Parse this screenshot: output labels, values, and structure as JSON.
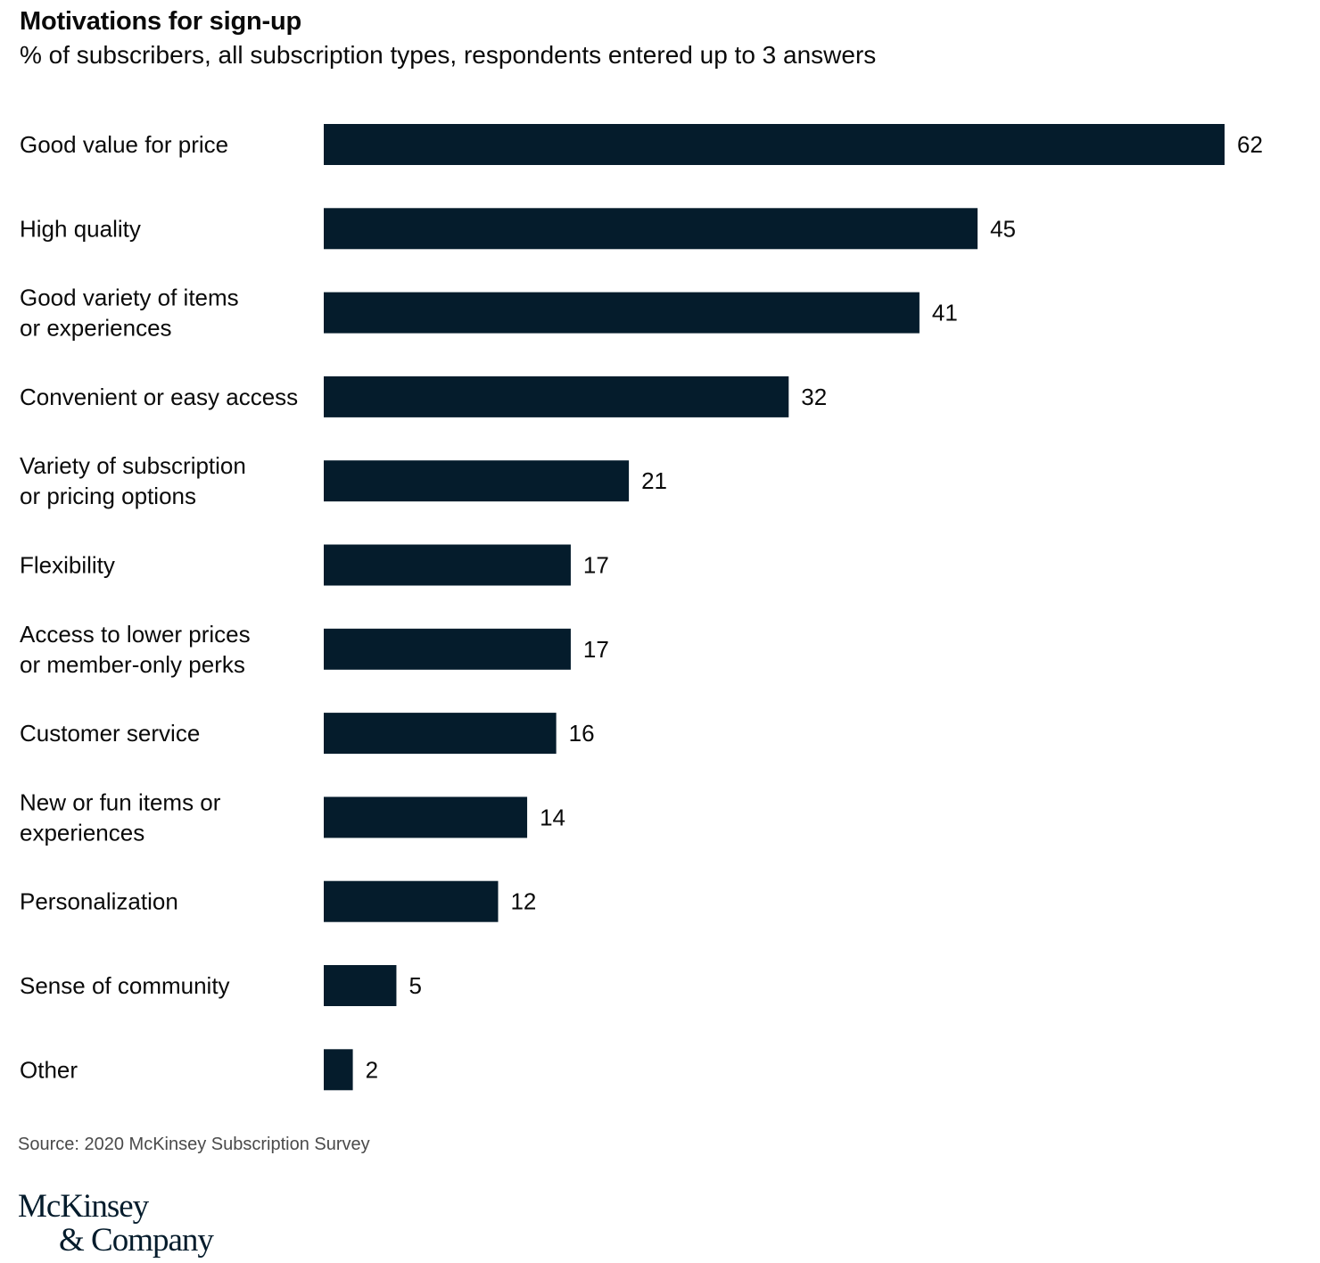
{
  "chart_data": {
    "type": "bar",
    "orientation": "horizontal",
    "title": "Motivations for sign-up",
    "subtitle": "% of subscribers, all subscription types, respondents entered up to 3 answers",
    "categories": [
      [
        "Good value for price"
      ],
      [
        "High quality"
      ],
      [
        "Good variety of items",
        "or experiences"
      ],
      [
        "Convenient or easy access"
      ],
      [
        "Variety of subscription",
        "or pricing options"
      ],
      [
        "Flexibility"
      ],
      [
        "Access to lower prices",
        "or member-only perks"
      ],
      [
        "Customer service"
      ],
      [
        "New or fun items or",
        "experiences"
      ],
      [
        "Personalization"
      ],
      [
        "Sense of community"
      ],
      [
        "Other"
      ]
    ],
    "values": [
      62,
      45,
      41,
      32,
      21,
      17,
      17,
      16,
      14,
      12,
      5,
      2
    ],
    "xlim": [
      0,
      62
    ],
    "grid": false,
    "legend": "none",
    "bar_color": "#051c2c",
    "data_labels": true
  },
  "source": "Source: 2020 McKinsey Subscription Survey",
  "logo": {
    "line1": "McKinsey",
    "line2": "& Company"
  }
}
